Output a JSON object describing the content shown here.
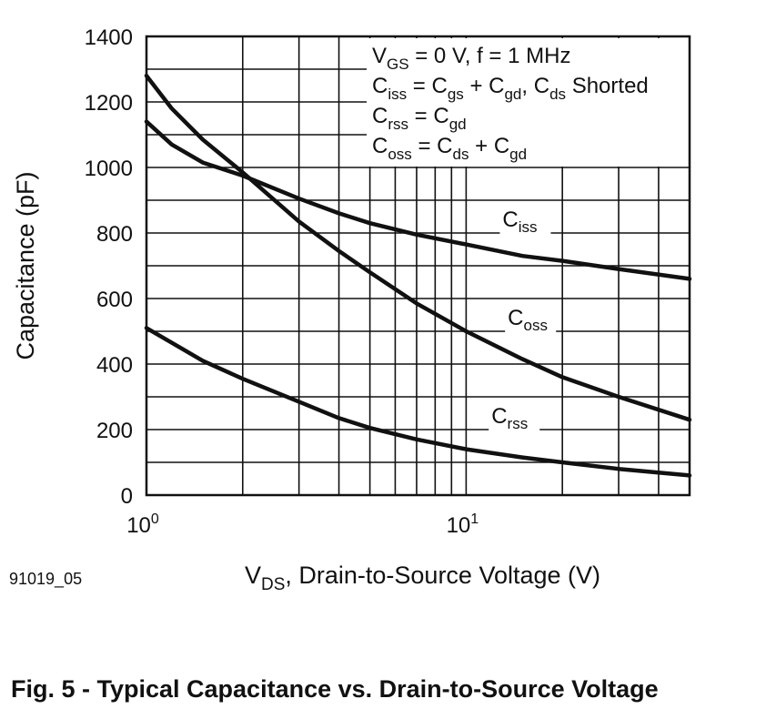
{
  "figure_caption": "Fig. 5 - Typical Capacitance vs. Drain-to-Source Voltage",
  "figure_id": "91019_05",
  "chart_data": {
    "type": "line",
    "xlabel": {
      "main": "V",
      "sub": "DS",
      "rest": ", Drain-to-Source Voltage (V)"
    },
    "ylabel": "Capacitance (pF)",
    "x_scale": "log",
    "xlim": [
      1,
      50
    ],
    "ylim": [
      0,
      1400
    ],
    "grid": true,
    "y_ticks": [
      "0",
      "200",
      "400",
      "600",
      "800",
      "1000",
      "1200",
      "1400"
    ],
    "x_ticks": [
      {
        "value": 1,
        "base": "10",
        "exp": "0"
      },
      {
        "value": 10,
        "base": "10",
        "exp": "1"
      }
    ],
    "conditions": [
      [
        {
          "t": "V"
        },
        {
          "t": "GS",
          "sub": true
        },
        {
          "t": " = 0 V, f = 1 MHz"
        }
      ],
      [
        {
          "t": "C"
        },
        {
          "t": "iss",
          "sub": true
        },
        {
          "t": " = C"
        },
        {
          "t": "gs",
          "sub": true
        },
        {
          "t": " + C"
        },
        {
          "t": "gd",
          "sub": true
        },
        {
          "t": ", C"
        },
        {
          "t": "ds",
          "sub": true
        },
        {
          "t": " Shorted"
        }
      ],
      [
        {
          "t": "C"
        },
        {
          "t": "rss",
          "sub": true
        },
        {
          "t": " = C"
        },
        {
          "t": "gd",
          "sub": true
        }
      ],
      [
        {
          "t": "C"
        },
        {
          "t": "oss",
          "sub": true
        },
        {
          "t": " = C"
        },
        {
          "t": "ds",
          "sub": true
        },
        {
          "t": " + C"
        },
        {
          "t": "gd",
          "sub": true
        }
      ]
    ],
    "series": [
      {
        "id": "ciss",
        "label_main": "C",
        "label_sub": "iss",
        "label_at": {
          "x": 13.0,
          "y": 820
        },
        "x": [
          1,
          1.2,
          1.5,
          2,
          3,
          4,
          5,
          7,
          10,
          15,
          20,
          30,
          50
        ],
        "y": [
          1140,
          1070,
          1015,
          975,
          905,
          860,
          830,
          795,
          765,
          730,
          715,
          690,
          660
        ]
      },
      {
        "id": "coss",
        "label_main": "C",
        "label_sub": "oss",
        "label_at": {
          "x": 13.5,
          "y": 520
        },
        "x": [
          1,
          1.2,
          1.5,
          2,
          3,
          4,
          5,
          7,
          10,
          15,
          20,
          30,
          50
        ],
        "y": [
          1280,
          1180,
          1085,
          985,
          835,
          745,
          680,
          585,
          500,
          415,
          360,
          300,
          230
        ]
      },
      {
        "id": "crss",
        "label_main": "C",
        "label_sub": "rss",
        "label_at": {
          "x": 12.0,
          "y": 220
        },
        "x": [
          1,
          1.5,
          2,
          3,
          4,
          5,
          7,
          10,
          15,
          20,
          30,
          50
        ],
        "y": [
          510,
          410,
          355,
          285,
          235,
          205,
          170,
          140,
          115,
          100,
          80,
          60
        ]
      }
    ]
  }
}
